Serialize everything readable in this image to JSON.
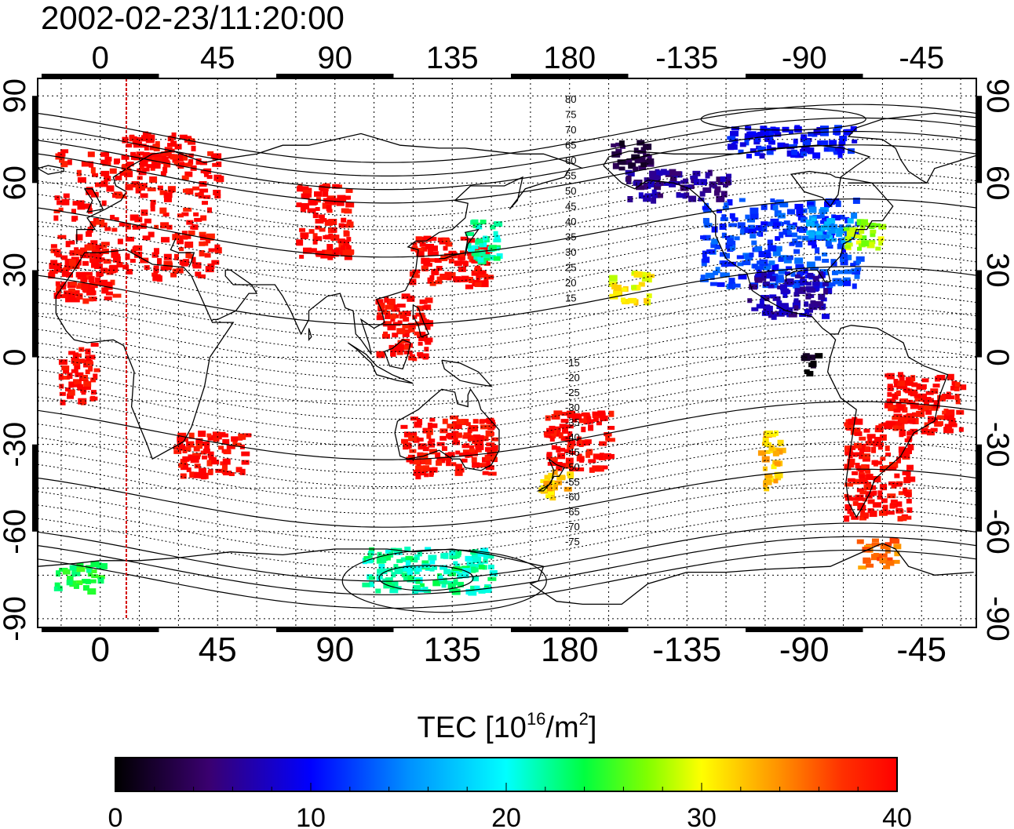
{
  "title": "2002-02-23/11:20:00",
  "map": {
    "lon_ticks": [
      "0",
      "45",
      "90",
      "135",
      "180",
      "-135",
      "-90",
      "-45"
    ],
    "lon_values": [
      0,
      45,
      90,
      135,
      180,
      225,
      270,
      315
    ],
    "lat_ticks_left": [
      "90",
      "60",
      "30",
      "0",
      "-30",
      "-60",
      "-90"
    ],
    "lat_ticks_right": [
      "90",
      "60",
      "30",
      "0",
      "-30",
      "-60",
      "-90"
    ],
    "lat_values": [
      90,
      60,
      30,
      0,
      -30,
      -60,
      -90
    ],
    "lon_range": [
      -24,
      336
    ],
    "lat_range": [
      -93,
      96
    ],
    "time_marker_lon": 10,
    "contour_labels_north": [
      "80",
      "75",
      "70",
      "65",
      "60",
      "55",
      "50",
      "45",
      "40",
      "35",
      "30",
      "25",
      "20",
      "15"
    ],
    "contour_labels_south": [
      "-15",
      "-20",
      "-25",
      "-30",
      "-35",
      "-40",
      "-45",
      "-50",
      "-55",
      "-60",
      "-65",
      "-70",
      "-75"
    ]
  },
  "colorbar": {
    "label_main": "TEC  [10",
    "label_exp1": "16",
    "label_mid": "/m",
    "label_exp2": "2",
    "label_end": "]",
    "ticks": [
      "0",
      "10",
      "20",
      "30",
      "40"
    ],
    "tick_values": [
      0,
      10,
      20,
      30,
      40
    ],
    "range": [
      0,
      40
    ]
  },
  "chart_data": {
    "type": "heatmap",
    "title": "2002-02-23/11:20:00",
    "quantity": "TEC  [10^16/m^2]",
    "color_range": [
      0,
      40
    ],
    "regions": [
      {
        "lon": [
          -18,
          45
        ],
        "lat": [
          28,
          72
        ],
        "tec": 40
      },
      {
        "lon": [
          8,
          35
        ],
        "lat": [
          66,
          78
        ],
        "tec": 40
      },
      {
        "lon": [
          -20,
          5
        ],
        "lat": [
          20,
          40
        ],
        "tec": 40
      },
      {
        "lon": [
          75,
          95
        ],
        "lat": [
          35,
          60
        ],
        "tec": 40
      },
      {
        "lon": [
          118,
          148
        ],
        "lat": [
          25,
          42
        ],
        "tec": 40
      },
      {
        "lon": [
          140,
          152
        ],
        "lat": [
          33,
          48
        ],
        "tec": 22
      },
      {
        "lon": [
          105,
          125
        ],
        "lat": [
          0,
          22
        ],
        "tec": 40
      },
      {
        "lon": [
          28,
          55
        ],
        "lat": [
          -40,
          -25
        ],
        "tec": 40
      },
      {
        "lon": [
          -16,
          -2
        ],
        "lat": [
          -15,
          5
        ],
        "tec": 40
      },
      {
        "lon": [
          115,
          150
        ],
        "lat": [
          -40,
          -20
        ],
        "tec": 40
      },
      {
        "lon": [
          170,
          195
        ],
        "lat": [
          -38,
          -18
        ],
        "tec": 40
      },
      {
        "lon": [
          168,
          180
        ],
        "lat": [
          -48,
          -38
        ],
        "tec": 32
      },
      {
        "lon": [
          252,
          260
        ],
        "lat": [
          -45,
          -25
        ],
        "tec": 32
      },
      {
        "lon": [
          285,
          310
        ],
        "lat": [
          -55,
          -20
        ],
        "tec": 40
      },
      {
        "lon": [
          300,
          330
        ],
        "lat": [
          -25,
          -5
        ],
        "tec": 40
      },
      {
        "lon": [
          290,
          305
        ],
        "lat": [
          -72,
          -62
        ],
        "tec": 35
      },
      {
        "lon": [
          195,
          210
        ],
        "lat": [
          65,
          75
        ],
        "tec": 3
      },
      {
        "lon": [
          200,
          240
        ],
        "lat": [
          55,
          65
        ],
        "tec": 6
      },
      {
        "lon": [
          230,
          290
        ],
        "lat": [
          25,
          55
        ],
        "tec": 12
      },
      {
        "lon": [
          248,
          278
        ],
        "lat": [
          15,
          30
        ],
        "tec": 7
      },
      {
        "lon": [
          270,
          288
        ],
        "lat": [
          40,
          52
        ],
        "tec": 16
      },
      {
        "lon": [
          285,
          300
        ],
        "lat": [
          38,
          48
        ],
        "tec": 28
      },
      {
        "lon": [
          268,
          275
        ],
        "lat": [
          -5,
          2
        ],
        "tec": 1
      },
      {
        "lon": [
          195,
          210
        ],
        "lat": [
          20,
          30
        ],
        "tec": 30
      },
      {
        "lon": [
          240,
          290
        ],
        "lat": [
          70,
          80
        ],
        "tec": 10
      },
      {
        "lon": [
          100,
          150
        ],
        "lat": [
          -80,
          -65
        ],
        "tec": 22
      },
      {
        "lon": [
          -18,
          0
        ],
        "lat": [
          -80,
          -70
        ],
        "tec": 24
      }
    ]
  }
}
